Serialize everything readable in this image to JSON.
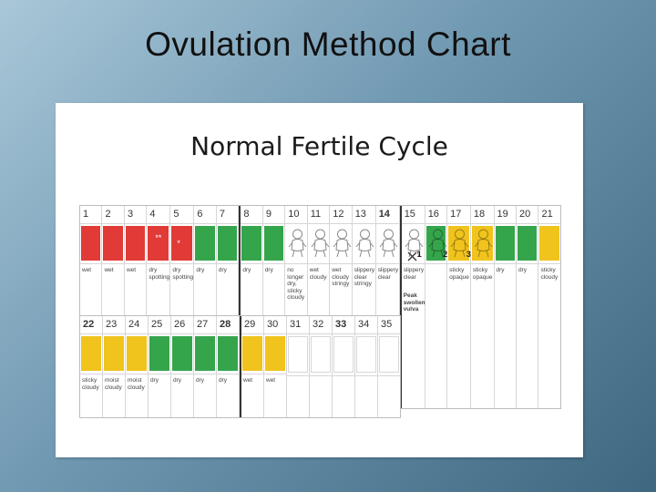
{
  "slide_title": "Ovulation Method Chart",
  "chart_title": "Normal Fertile Cycle",
  "colors": {
    "red": "#e23a36",
    "green": "#35a54c",
    "yellow": "#f0c31d",
    "white": "#ffffff"
  },
  "chart_data": {
    "type": "table",
    "title": "Normal Fertile Cycle",
    "days": [
      {
        "day": "1",
        "color": "red",
        "note": "wet"
      },
      {
        "day": "2",
        "color": "red",
        "note": "wet"
      },
      {
        "day": "3",
        "color": "red",
        "note": "wet"
      },
      {
        "day": "4",
        "color": "red",
        "note": "dry spotting"
      },
      {
        "day": "5",
        "color": "red",
        "note": "dry spotting"
      },
      {
        "day": "6",
        "color": "green",
        "note": "dry"
      },
      {
        "day": "7",
        "color": "green",
        "note": "dry"
      },
      {
        "day": "8",
        "color": "green",
        "note": "dry"
      },
      {
        "day": "9",
        "color": "green",
        "note": "dry"
      },
      {
        "day": "10",
        "color": "baby-white",
        "note": "no longer dry, sticky cloudy"
      },
      {
        "day": "11",
        "color": "baby-white",
        "note": "wet cloudy"
      },
      {
        "day": "12",
        "color": "baby-white",
        "note": "wet cloudy stringy"
      },
      {
        "day": "13",
        "color": "baby-white",
        "note": "slippery clear stringy"
      },
      {
        "day": "14",
        "color": "baby-white",
        "note": "slippery clear"
      },
      {
        "day": "15",
        "color": "baby-white",
        "note": "slippery clear",
        "extra": "Peak swollen vulva"
      },
      {
        "day": "16",
        "color": "baby-green",
        "note": ""
      },
      {
        "day": "17",
        "color": "baby-yellow",
        "note": "sticky opaque"
      },
      {
        "day": "18",
        "color": "baby-yellow",
        "note": "sticky opaque"
      },
      {
        "day": "19",
        "color": "green",
        "note": "dry"
      },
      {
        "day": "20",
        "color": "green",
        "note": "dry"
      },
      {
        "day": "21",
        "color": "yellow",
        "note": "sticky cloudy"
      },
      {
        "day": "22",
        "color": "yellow",
        "note": "sticky cloudy"
      },
      {
        "day": "23",
        "color": "yellow",
        "note": "moist cloudy"
      },
      {
        "day": "24",
        "color": "yellow",
        "note": "moist cloudy"
      },
      {
        "day": "25",
        "color": "green",
        "note": "dry"
      },
      {
        "day": "26",
        "color": "green",
        "note": "dry"
      },
      {
        "day": "27",
        "color": "green",
        "note": "dry"
      },
      {
        "day": "28",
        "color": "green",
        "note": "dry"
      },
      {
        "day": "29",
        "color": "yellow",
        "note": "wet"
      },
      {
        "day": "30",
        "color": "yellow",
        "note": "wet"
      },
      {
        "day": "31",
        "color": "white",
        "note": ""
      },
      {
        "day": "32",
        "color": "white",
        "note": ""
      },
      {
        "day": "33",
        "color": "white",
        "note": ""
      },
      {
        "day": "34",
        "color": "white",
        "note": ""
      },
      {
        "day": "35",
        "color": "white",
        "note": ""
      }
    ],
    "post_peak_counts": [
      "1",
      "2",
      "3"
    ],
    "spotting_marks": [
      "**",
      "*"
    ]
  }
}
